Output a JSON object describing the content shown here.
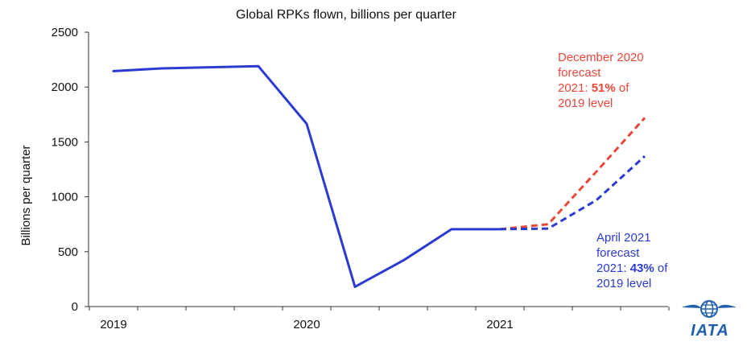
{
  "chart_data": {
    "type": "line",
    "title": "Global RPKs flown, billions per quarter",
    "xlabel": "",
    "ylabel": "Billions per quarter",
    "ylim": [
      0,
      2500
    ],
    "yticks": [
      0,
      500,
      1000,
      1500,
      2000,
      2500
    ],
    "year_labels": [
      "2019",
      "2020",
      "2021"
    ],
    "quarters": [
      "2019 Q1",
      "2019 Q2",
      "2019 Q3",
      "2019 Q4",
      "2020 Q1",
      "2020 Q2",
      "2020 Q3",
      "2020 Q4",
      "2021 Q1",
      "2021 Q2",
      "2021 Q3",
      "2021 Q4"
    ],
    "grid": false,
    "series": [
      {
        "key": "actual",
        "color": "#2b3bd1",
        "style": "solid",
        "x": [
          "2019 Q1",
          "2019 Q2",
          "2019 Q3",
          "2019 Q4",
          "2020 Q1",
          "2020 Q2",
          "2020 Q3",
          "2020 Q4",
          "2021 Q1"
        ],
        "values": [
          2145,
          2170,
          2180,
          2190,
          1665,
          180,
          420,
          705,
          705
        ]
      },
      {
        "key": "december-2020-forecast",
        "color": "#e8473a",
        "style": "dashed",
        "x": [
          "2021 Q1",
          "2021 Q2",
          "2021 Q3",
          "2021 Q4"
        ],
        "values": [
          705,
          750,
          1230,
          1720
        ]
      },
      {
        "key": "april-2021-forecast",
        "color": "#2b3bd1",
        "style": "dashed",
        "x": [
          "2021 Q1",
          "2021 Q2",
          "2021 Q3",
          "2021 Q4"
        ],
        "values": [
          705,
          710,
          970,
          1370
        ]
      }
    ],
    "annotations": {
      "december": {
        "color": "#e8473a",
        "line1": "December 2020",
        "line2": "forecast",
        "line3_prefix": "2021: ",
        "line3_bold": "51%",
        "line3_suffix": " of",
        "line4": "2019 level"
      },
      "april": {
        "color": "#2b3bd1",
        "line1": "April 2021",
        "line2": "forecast",
        "line3_prefix": "2021: ",
        "line3_bold": "43%",
        "line3_suffix": " of",
        "line4": "2019 level"
      }
    }
  },
  "logo": {
    "text": "IATA",
    "icon": "globe-icon",
    "color": "#1f5fae"
  }
}
